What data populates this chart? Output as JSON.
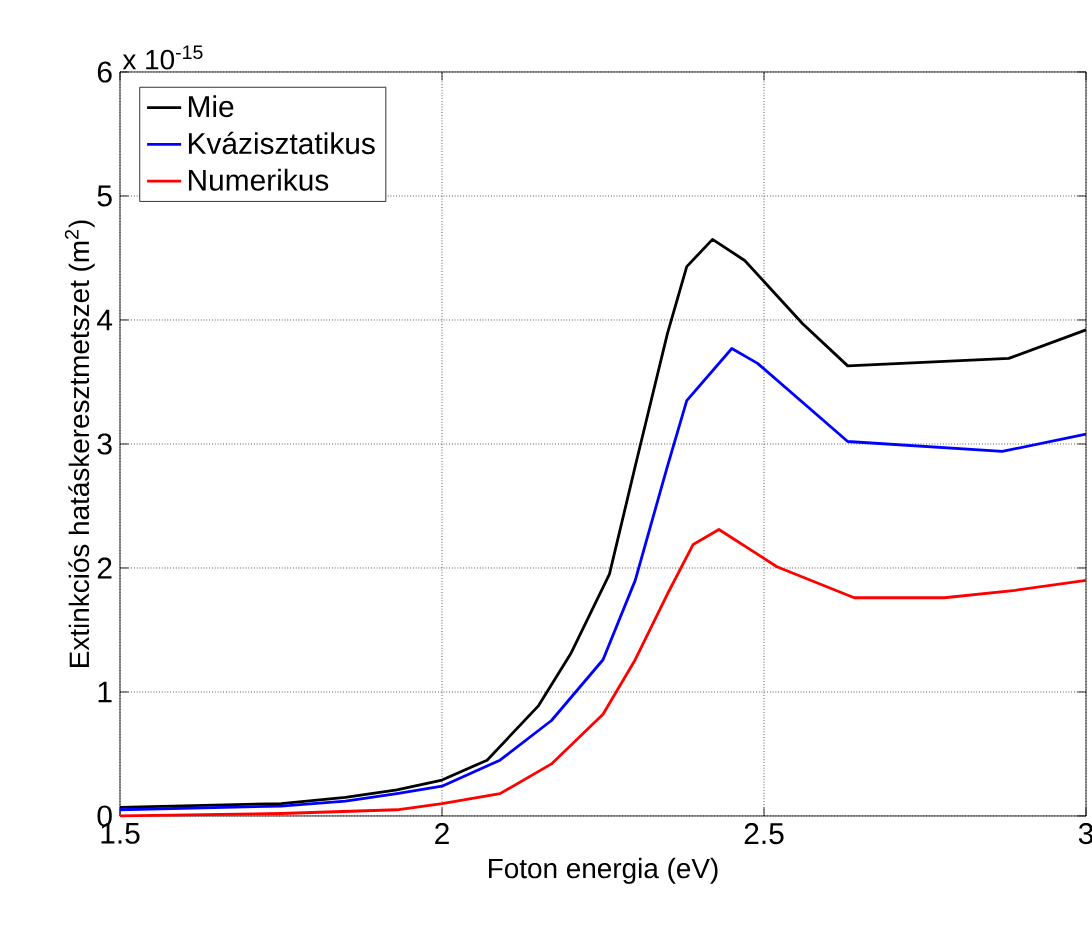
{
  "chart_data": {
    "type": "line",
    "xlabel": "Foton energia (eV)",
    "ylabel": "Extinkciós hatáskeresztmetszet (m$^{2}$)",
    "annotations": [
      "x 10$^{-15}$"
    ],
    "xlim": [
      1.5,
      3
    ],
    "ylim": [
      0,
      6
    ],
    "xticks": [
      1.5,
      2,
      2.5,
      3
    ],
    "yticks": [
      0,
      1,
      2,
      3,
      4,
      5,
      6
    ],
    "grid": true,
    "legend": "top left",
    "line_style": "solid",
    "marker": "none",
    "series": [
      {
        "name": "Mie",
        "color": "#000000",
        "x": [
          1.5,
          1.75,
          1.85,
          1.93,
          2.0,
          2.07,
          2.15,
          2.2,
          2.26,
          2.3,
          2.35,
          2.38,
          2.42,
          2.47,
          2.56,
          2.63,
          2.88,
          3.0
        ],
        "values": [
          0.07,
          0.1,
          0.15,
          0.21,
          0.29,
          0.45,
          0.89,
          1.31,
          1.95,
          2.82,
          3.89,
          4.43,
          4.65,
          4.48,
          3.97,
          3.63,
          3.69,
          3.92
        ]
      },
      {
        "name": "Kvázisztatikus",
        "color": "#0000ff",
        "x": [
          1.5,
          1.75,
          1.85,
          1.93,
          2.0,
          2.09,
          2.17,
          2.25,
          2.3,
          2.35,
          2.38,
          2.45,
          2.49,
          2.63,
          2.87,
          3.0
        ],
        "values": [
          0.05,
          0.08,
          0.12,
          0.18,
          0.24,
          0.45,
          0.77,
          1.26,
          1.9,
          2.82,
          3.35,
          3.77,
          3.65,
          3.02,
          2.94,
          3.08
        ]
      },
      {
        "name": "Numerikus",
        "color": "#ff0000",
        "x": [
          1.5,
          1.75,
          1.93,
          2.0,
          2.09,
          2.17,
          2.25,
          2.3,
          2.35,
          2.39,
          2.43,
          2.52,
          2.64,
          2.78,
          2.89,
          3.0
        ],
        "values": [
          0.0,
          0.02,
          0.05,
          0.1,
          0.18,
          0.42,
          0.82,
          1.26,
          1.79,
          2.19,
          2.31,
          2.01,
          1.76,
          1.76,
          1.82,
          1.9
        ]
      }
    ]
  }
}
